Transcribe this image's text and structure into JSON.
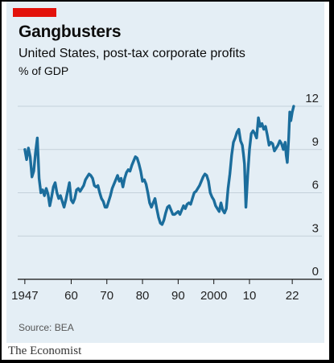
{
  "header": {
    "title": "Gangbusters",
    "subtitle": "United States, post-tax corporate profits",
    "unit": "% of GDP"
  },
  "footer": {
    "source": "Source: BEA",
    "publisher": "The Economist"
  },
  "colors": {
    "line": "#1b6d9c",
    "accent": "#e3120b",
    "card_bg": "#e4eef5",
    "grid": "#c4d1da"
  },
  "chart_data": {
    "type": "line",
    "title": "Gangbusters",
    "subtitle": "United States, post-tax corporate profits",
    "ylabel": "% of GDP",
    "xlabel": "",
    "xlim": [
      1945,
      2024
    ],
    "ylim": [
      0,
      12
    ],
    "yticks": [
      "0",
      "3",
      "6",
      "9",
      "12"
    ],
    "xticks": [
      {
        "value": 1947,
        "label": "1947"
      },
      {
        "value": 1960,
        "label": "60"
      },
      {
        "value": 1970,
        "label": "70"
      },
      {
        "value": 1980,
        "label": "80"
      },
      {
        "value": 1990,
        "label": "90"
      },
      {
        "value": 2000,
        "label": "2000"
      },
      {
        "value": 2010,
        "label": "10"
      },
      {
        "value": 2022,
        "label": "22"
      }
    ],
    "grid": true,
    "axis_side": "right",
    "series": [
      {
        "x": [
          1947,
          1947.5,
          1948,
          1948.5,
          1949,
          1949.5,
          1950,
          1950.5,
          1951,
          1951.5,
          1952,
          1952.5,
          1953,
          1953.5,
          1954,
          1954.5,
          1955,
          1955.5,
          1956,
          1956.5,
          1957,
          1957.5,
          1958,
          1958.5,
          1959,
          1959.5,
          1960,
          1960.5,
          1961,
          1961.5,
          1962,
          1962.5,
          1963,
          1963.5,
          1964,
          1964.5,
          1965,
          1965.5,
          1966,
          1966.5,
          1967,
          1967.5,
          1968,
          1968.5,
          1969,
          1969.5,
          1970,
          1970.5,
          1971,
          1971.5,
          1972,
          1972.5,
          1973,
          1973.5,
          1974,
          1974.5,
          1975,
          1975.5,
          1976,
          1976.5,
          1977,
          1977.5,
          1978,
          1978.5,
          1979,
          1979.5,
          1980,
          1980.5,
          1981,
          1981.5,
          1982,
          1982.5,
          1983,
          1983.5,
          1984,
          1984.5,
          1985,
          1985.5,
          1986,
          1986.5,
          1987,
          1987.5,
          1988,
          1988.5,
          1989,
          1989.5,
          1990,
          1990.5,
          1991,
          1991.5,
          1992,
          1992.5,
          1993,
          1993.5,
          1994,
          1994.5,
          1995,
          1995.5,
          1996,
          1996.5,
          1997,
          1997.5,
          1998,
          1998.5,
          1999,
          1999.5,
          2000,
          2000.5,
          2001,
          2001.5,
          2002,
          2002.5,
          2003,
          2003.5,
          2004,
          2004.5,
          2005,
          2005.5,
          2006,
          2006.5,
          2007,
          2007.5,
          2008,
          2008.3,
          2008.6,
          2009,
          2009.5,
          2010,
          2010.5,
          2011,
          2011.5,
          2012,
          2012.5,
          2013,
          2013.5,
          2014,
          2014.5,
          2015,
          2015.5,
          2016,
          2016.5,
          2017,
          2017.5,
          2018,
          2018.5,
          2019,
          2019.5,
          2020,
          2020.3,
          2020.6,
          2021,
          2021.3,
          2021.6,
          2022,
          2022.4
        ],
        "y": [
          9.0,
          8.3,
          9.1,
          8.5,
          7.1,
          7.5,
          8.8,
          9.8,
          7.0,
          6.0,
          6.2,
          5.8,
          6.3,
          5.9,
          5.1,
          5.7,
          6.4,
          6.7,
          6.0,
          5.6,
          5.8,
          5.4,
          5.0,
          5.5,
          6.1,
          6.7,
          5.5,
          5.3,
          5.6,
          6.2,
          6.3,
          6.1,
          6.3,
          6.5,
          6.9,
          7.1,
          7.3,
          7.2,
          7.0,
          6.5,
          6.4,
          6.5,
          6.0,
          5.6,
          5.4,
          5.0,
          5.0,
          5.4,
          5.8,
          6.3,
          6.6,
          6.9,
          7.2,
          6.8,
          7.0,
          6.4,
          7.0,
          7.4,
          7.6,
          7.5,
          7.9,
          8.2,
          8.5,
          8.4,
          8.0,
          7.5,
          6.8,
          6.9,
          6.6,
          6.0,
          5.3,
          5.0,
          5.3,
          5.6,
          4.9,
          4.3,
          3.9,
          3.8,
          4.1,
          4.6,
          5.0,
          5.1,
          4.8,
          4.5,
          4.5,
          4.6,
          4.7,
          4.5,
          4.8,
          5.1,
          4.9,
          5.2,
          5.3,
          5.2,
          5.6,
          6.0,
          6.1,
          6.3,
          6.5,
          6.8,
          7.1,
          7.3,
          7.2,
          6.8,
          6.0,
          5.7,
          5.5,
          5.1,
          4.9,
          4.7,
          5.3,
          4.8,
          4.6,
          4.9,
          6.3,
          7.3,
          8.6,
          9.5,
          9.8,
          10.2,
          10.4,
          9.6,
          9.3,
          8.7,
          8.0,
          5.0,
          7.2,
          9.0,
          10.1,
          10.3,
          10.1,
          9.8,
          11.2,
          10.6,
          10.8,
          10.4,
          10.6,
          10.0,
          9.3,
          9.5,
          9.4,
          8.9,
          9.1,
          9.3,
          9.6,
          9.4,
          9.0,
          9.5,
          8.6,
          8.1,
          9.8,
          11.6,
          11.0,
          11.6,
          12.0
        ]
      }
    ]
  }
}
